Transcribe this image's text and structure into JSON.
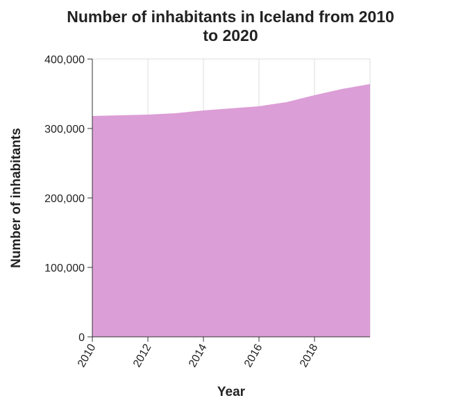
{
  "chart_data": {
    "type": "area",
    "title": "Number of inhabitants in Iceland from 2010 to 2020",
    "title_lines": [
      "Number of inhabitants in Iceland from 2010",
      "to 2020"
    ],
    "xlabel": "Year",
    "ylabel": "Number of inhabitants",
    "x": [
      2010,
      2011,
      2012,
      2013,
      2014,
      2015,
      2016,
      2017,
      2018,
      2019,
      2020
    ],
    "series": [
      {
        "values": [
          318000,
          319000,
          320000,
          322000,
          326000,
          329000,
          332000,
          338000,
          348000,
          357000,
          364000
        ]
      }
    ],
    "xlim": [
      2010,
      2020
    ],
    "ylim": [
      0,
      400000
    ],
    "x_ticks": [
      2010,
      2012,
      2014,
      2016,
      2018
    ],
    "x_tick_labels": [
      "2010",
      "2012",
      "2014",
      "2016",
      "2018"
    ],
    "y_ticks": [
      0,
      100000,
      200000,
      300000,
      400000
    ],
    "y_tick_labels": [
      "0",
      "100,000",
      "200,000",
      "300,000",
      "400,000"
    ],
    "grid": true,
    "legend": false,
    "fill_color": "#dc9ed6"
  }
}
